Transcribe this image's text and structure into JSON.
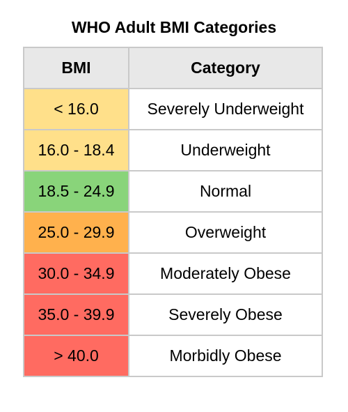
{
  "title": "WHO Adult BMI Categories",
  "table": {
    "headers": [
      "BMI",
      "Category"
    ],
    "rows": [
      {
        "bmi": "< 16.0",
        "category": "Severely Underweight",
        "color": "#ffe08a"
      },
      {
        "bmi": "16.0 - 18.4",
        "category": "Underweight",
        "color": "#ffe08a"
      },
      {
        "bmi": "18.5 - 24.9",
        "category": "Normal",
        "color": "#89d47a"
      },
      {
        "bmi": "25.0 - 29.9",
        "category": "Overweight",
        "color": "#ffb14d"
      },
      {
        "bmi": "30.0 - 34.9",
        "category": "Moderately Obese",
        "color": "#ff6b61"
      },
      {
        "bmi": "35.0 - 39.9",
        "category": "Severely Obese",
        "color": "#ff6b61"
      },
      {
        "bmi": "> 40.0",
        "category": "Morbidly Obese",
        "color": "#ff6b61"
      }
    ]
  }
}
